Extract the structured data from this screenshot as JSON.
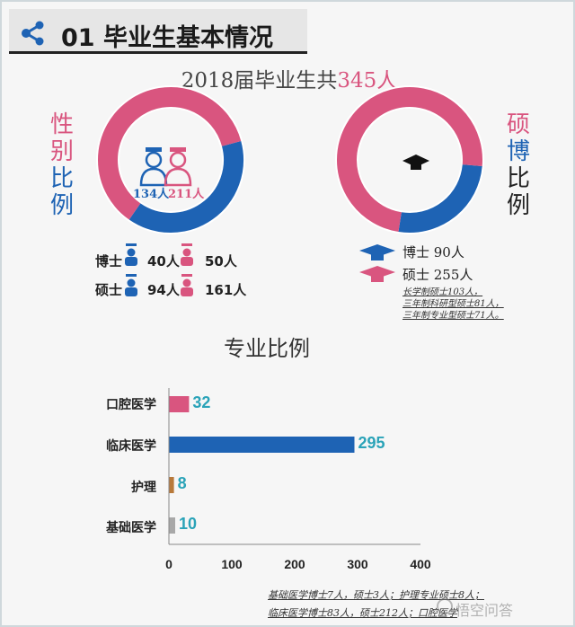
{
  "header": {
    "title": "01 毕业生基本情况"
  },
  "summary": {
    "prefix": "2018届毕业生共",
    "total": "345",
    "suffix": "人"
  },
  "gender": {
    "side_label": [
      "性",
      "别",
      "比",
      "例"
    ],
    "male_count": "134人",
    "female_count": "211人",
    "rows": [
      {
        "degree": "博士",
        "male": "40人",
        "female": "50人"
      },
      {
        "degree": "硕士",
        "male": "94人",
        "female": "161人"
      }
    ]
  },
  "degree": {
    "side_label": [
      "硕",
      "博",
      "比",
      "例"
    ],
    "legend": [
      {
        "label": "博士 90人",
        "color": "#1e63b4"
      },
      {
        "label": "硕士 255人",
        "color": "#d9557f"
      }
    ],
    "notes": [
      "长学制硕士103人，",
      "三年制科研型硕士81人，",
      "三年制专业型硕士71人。"
    ]
  },
  "colors": {
    "pink": "#d9557f",
    "blue": "#1e63b4",
    "teal": "#2aa3b8"
  },
  "icons": {
    "header": "share-icon",
    "gender": "graduate-icon",
    "degree": "mortarboard-icon"
  },
  "majors": {
    "title": "专业比例"
  },
  "chart_data": [
    {
      "type": "pie",
      "categories": [
        "男",
        "女"
      ],
      "values": [
        134,
        211
      ],
      "colors": [
        "#1e63b4",
        "#d9557f"
      ]
    },
    {
      "type": "pie",
      "categories": [
        "博士",
        "硕士"
      ],
      "values": [
        90,
        255
      ],
      "colors": [
        "#1e63b4",
        "#d9557f"
      ]
    },
    {
      "type": "bar",
      "orientation": "horizontal",
      "categories": [
        "口腔医学",
        "临床医学",
        "护理",
        "基础医学"
      ],
      "values": [
        32,
        295,
        8,
        10
      ],
      "bar_colors": [
        "#d9557f",
        "#1e63b4",
        "#b8793a",
        "#a8a8a8"
      ],
      "xlim": [
        0,
        400
      ],
      "xticks": [
        0,
        100,
        200,
        300,
        400
      ],
      "grid": false
    }
  ],
  "footnotes": [
    "基础医学博士7人，硕士3人；护理专业硕士8人；",
    "临床医学博士83人，硕士212人；口腔医学"
  ],
  "watermark": "悟空问答"
}
